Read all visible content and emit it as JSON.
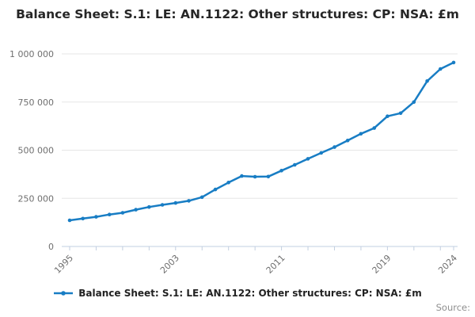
{
  "title": "Balance Sheet: S.1: LE: AN.1122: Other structures: CP: NSA: £m",
  "legend": {
    "label": "Balance Sheet: S.1: LE: AN.1122: Other structures: CP: NSA: £m"
  },
  "source_label": "Source:",
  "chart_data": {
    "type": "line",
    "title": "Balance Sheet: S.1: LE: AN.1122: Other structures: CP: NSA: £m",
    "series_name": "Balance Sheet: S.1: LE: AN.1122: Other structures: CP: NSA: £m",
    "xlabel": "",
    "ylabel": "",
    "x": [
      1995,
      1996,
      1997,
      1998,
      1999,
      2000,
      2001,
      2002,
      2003,
      2004,
      2005,
      2006,
      2007,
      2008,
      2009,
      2010,
      2011,
      2012,
      2013,
      2014,
      2015,
      2016,
      2017,
      2018,
      2019,
      2020,
      2021,
      2022,
      2023,
      2024
    ],
    "values": [
      136000,
      145000,
      154000,
      166000,
      175000,
      191000,
      205000,
      216000,
      226000,
      237000,
      256000,
      296000,
      332000,
      366000,
      362000,
      363000,
      394000,
      424000,
      455000,
      486000,
      516000,
      550000,
      585000,
      615000,
      676000,
      692000,
      750000,
      859000,
      922000,
      955000
    ],
    "ylim": [
      0,
      1000000
    ],
    "ytick_values": [
      0,
      250000,
      500000,
      750000,
      1000000
    ],
    "ytick_labels": [
      "0",
      "250 000",
      "500 000",
      "750 000",
      "1 000 000"
    ],
    "xticks": [
      1995,
      1997,
      1999,
      2001,
      2003,
      2005,
      2007,
      2009,
      2011,
      2013,
      2015,
      2017,
      2019,
      2021,
      2023,
      2024
    ],
    "xtick_labels": [
      1995,
      2003,
      2011,
      2019,
      2024
    ],
    "grid": "horizontal",
    "legend_position": "bottom",
    "marker": "circle",
    "colors": {
      "line": "#187dc4",
      "axis": "#c2cfe0",
      "grid": "#e6e6e6",
      "tick_label": "#6f6f6f",
      "title": "#262626",
      "legend_text": "#222222",
      "source_text": "#8f8f8f"
    }
  }
}
